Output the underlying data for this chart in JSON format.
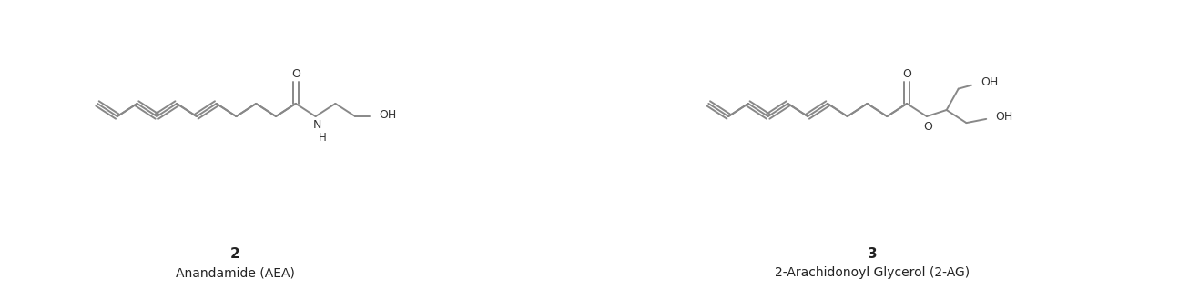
{
  "background_color": "#ffffff",
  "label1_number": "2",
  "label1_name": "Anandamide (AEA)",
  "label2_number": "3",
  "label2_name": "2-Arachidonoyl Glycerol (2-AG)",
  "label_fontsize": 10,
  "number_fontsize": 11,
  "fig_width": 13.17,
  "fig_height": 3.18,
  "dpi": 100,
  "line_color": "#888888",
  "line_width": 1.4
}
